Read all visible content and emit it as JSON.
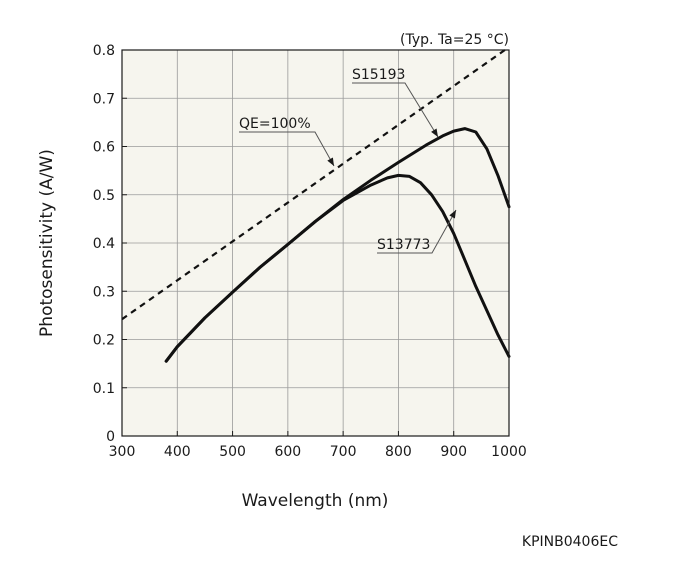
{
  "chart_data": {
    "type": "line",
    "condition_note": "(Typ. Ta=25 °C)",
    "xlabel": "Wavelength (nm)",
    "ylabel": "Photosensitivity (A/W)",
    "xlim": [
      300,
      1000
    ],
    "ylim": [
      0,
      0.8
    ],
    "x_ticks": [
      300,
      400,
      500,
      600,
      700,
      800,
      900,
      1000
    ],
    "y_ticks": [
      0,
      0.1,
      0.2,
      0.3,
      0.4,
      0.5,
      0.6,
      0.7,
      0.8
    ],
    "grid": true,
    "plot_background": "#f6f5ee",
    "series": [
      {
        "name": "QE=100%",
        "style": "dashed",
        "x": [
          300,
          1000
        ],
        "y": [
          0.242,
          0.806
        ]
      },
      {
        "name": "S15193",
        "style": "solid",
        "x": [
          380,
          400,
          450,
          500,
          550,
          600,
          650,
          700,
          750,
          800,
          850,
          880,
          900,
          920,
          940,
          960,
          980,
          1000
        ],
        "y": [
          0.155,
          0.185,
          0.245,
          0.298,
          0.35,
          0.397,
          0.445,
          0.49,
          0.53,
          0.567,
          0.603,
          0.622,
          0.632,
          0.637,
          0.63,
          0.595,
          0.54,
          0.475
        ]
      },
      {
        "name": "S13773",
        "style": "solid",
        "x": [
          380,
          400,
          450,
          500,
          550,
          600,
          650,
          700,
          750,
          780,
          800,
          820,
          840,
          860,
          880,
          900,
          920,
          940,
          960,
          980,
          1000
        ],
        "y": [
          0.155,
          0.185,
          0.245,
          0.298,
          0.35,
          0.397,
          0.445,
          0.488,
          0.52,
          0.535,
          0.54,
          0.538,
          0.525,
          0.5,
          0.465,
          0.42,
          0.365,
          0.31,
          0.26,
          0.21,
          0.165
        ]
      }
    ],
    "annotations": [
      {
        "text": "QE=100%",
        "series": "QE=100%"
      },
      {
        "text": "S15193",
        "series": "S15193"
      },
      {
        "text": "S13773",
        "series": "S13773"
      }
    ]
  },
  "footer_code": "KPINB0406EC"
}
